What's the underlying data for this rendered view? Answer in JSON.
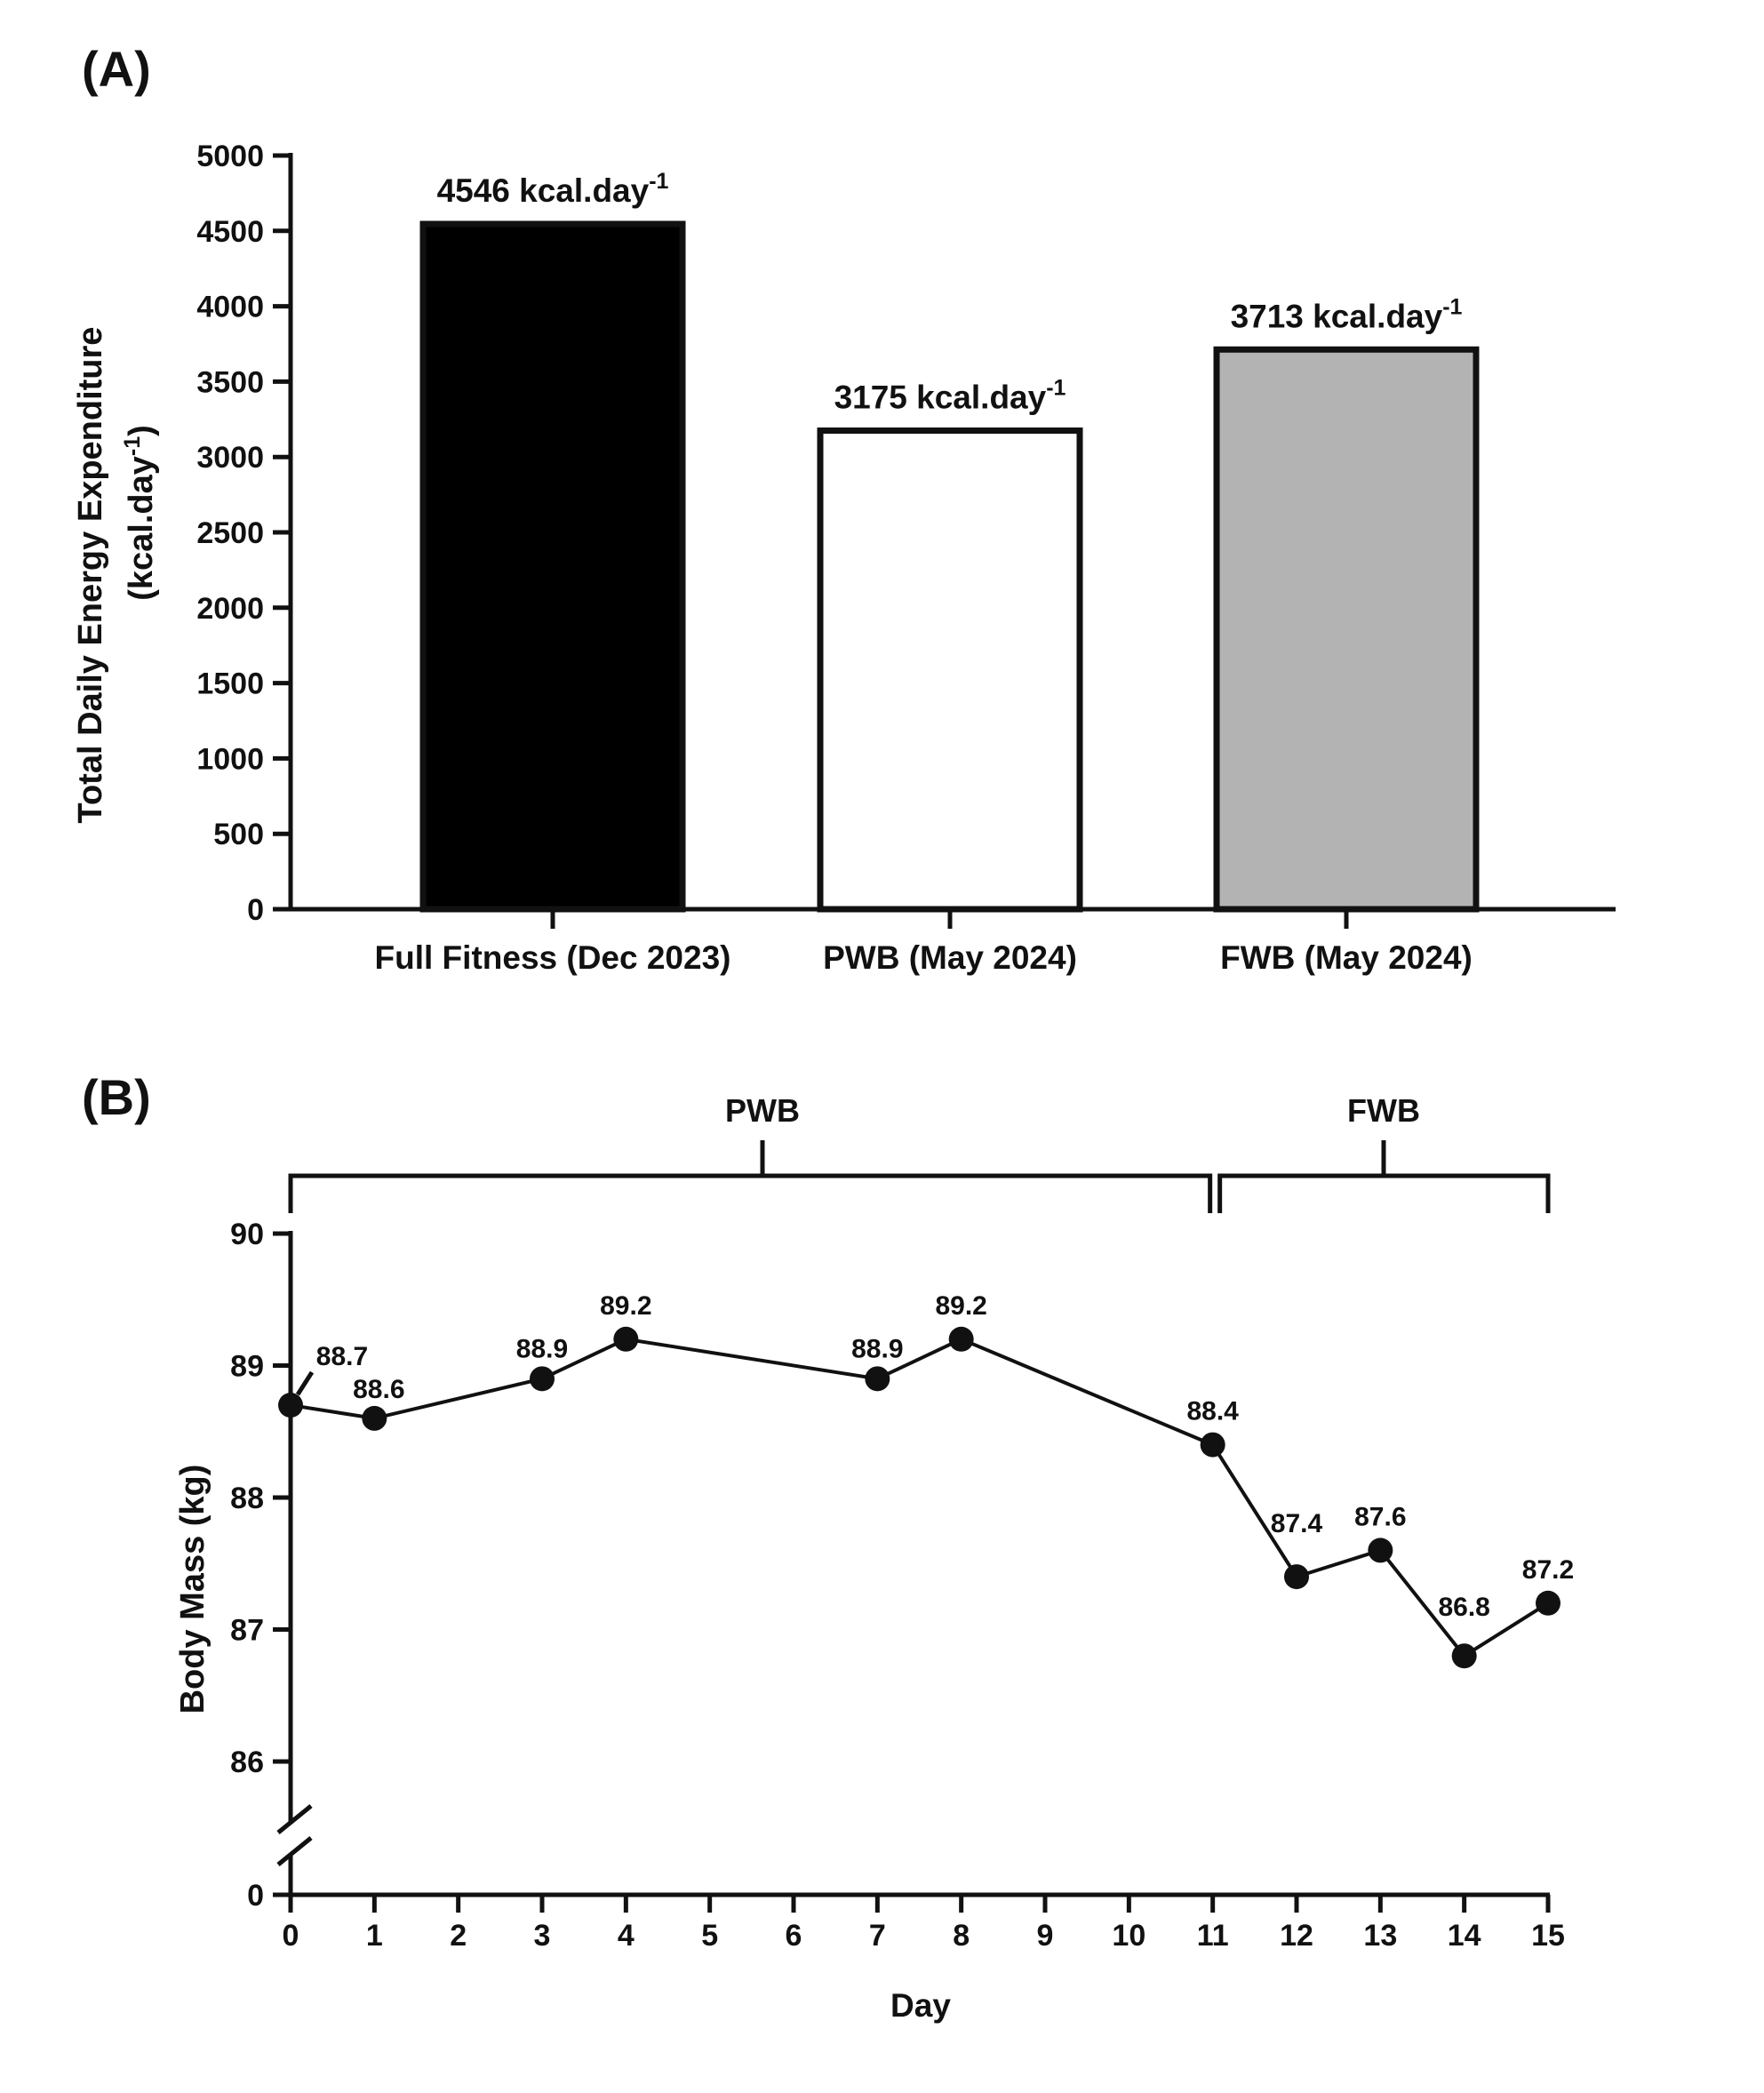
{
  "chart_data": [
    {
      "panel": "(A)",
      "type": "bar",
      "categories": [
        "Full Fitness (Dec 2023)",
        "PWB (May 2024)",
        "FWB (May 2024)"
      ],
      "values": [
        4546,
        3175,
        3713
      ],
      "bar_colors": [
        "#000000",
        "#ffffff",
        "#b3b3b3"
      ],
      "data_labels": [
        {
          "text": "4546 kcal.day",
          "sup": "-1"
        },
        {
          "text": "3175 kcal.day",
          "sup": "-1"
        },
        {
          "text": "3713 kcal.day",
          "sup": "-1"
        }
      ],
      "ylabel_line1": "Total  Daily  Energy  Expenditure",
      "ylabel_line2": "(kcal.day",
      "ylabel_line2_sup": "-1",
      "ylabel_line2_end": ")",
      "xlabel": "",
      "ylim": [
        0,
        5000
      ],
      "yticks": [
        0,
        500,
        1000,
        1500,
        2000,
        2500,
        3000,
        3500,
        4000,
        4500,
        5000
      ]
    },
    {
      "panel": "(B)",
      "type": "line",
      "x": [
        0,
        1,
        3,
        4,
        7,
        8,
        11,
        12,
        13,
        14,
        15
      ],
      "y": [
        88.7,
        88.6,
        88.9,
        89.2,
        88.9,
        89.2,
        88.4,
        87.4,
        87.6,
        86.8,
        87.2
      ],
      "point_labels": [
        "88.7",
        "88.6",
        "88.9",
        "89.2",
        "88.9",
        "89.2",
        "88.4",
        "87.4",
        "87.6",
        "86.8",
        "87.2"
      ],
      "xlabel": "Day",
      "ylabel": "Body Mass (kg)",
      "xlim": [
        0,
        15
      ],
      "xticks": [
        0,
        1,
        2,
        3,
        4,
        5,
        6,
        7,
        8,
        9,
        10,
        11,
        12,
        13,
        14,
        15
      ],
      "ylim": [
        86,
        90
      ],
      "yticks": [
        86,
        87,
        88,
        89,
        90
      ],
      "y_break_label": "0",
      "phases": [
        {
          "label": "PWB",
          "start": 0,
          "end": 11
        },
        {
          "label": "FWB",
          "start": 11,
          "end": 15
        }
      ]
    }
  ],
  "colors": {
    "ink": "#111111",
    "background": "#ffffff"
  }
}
